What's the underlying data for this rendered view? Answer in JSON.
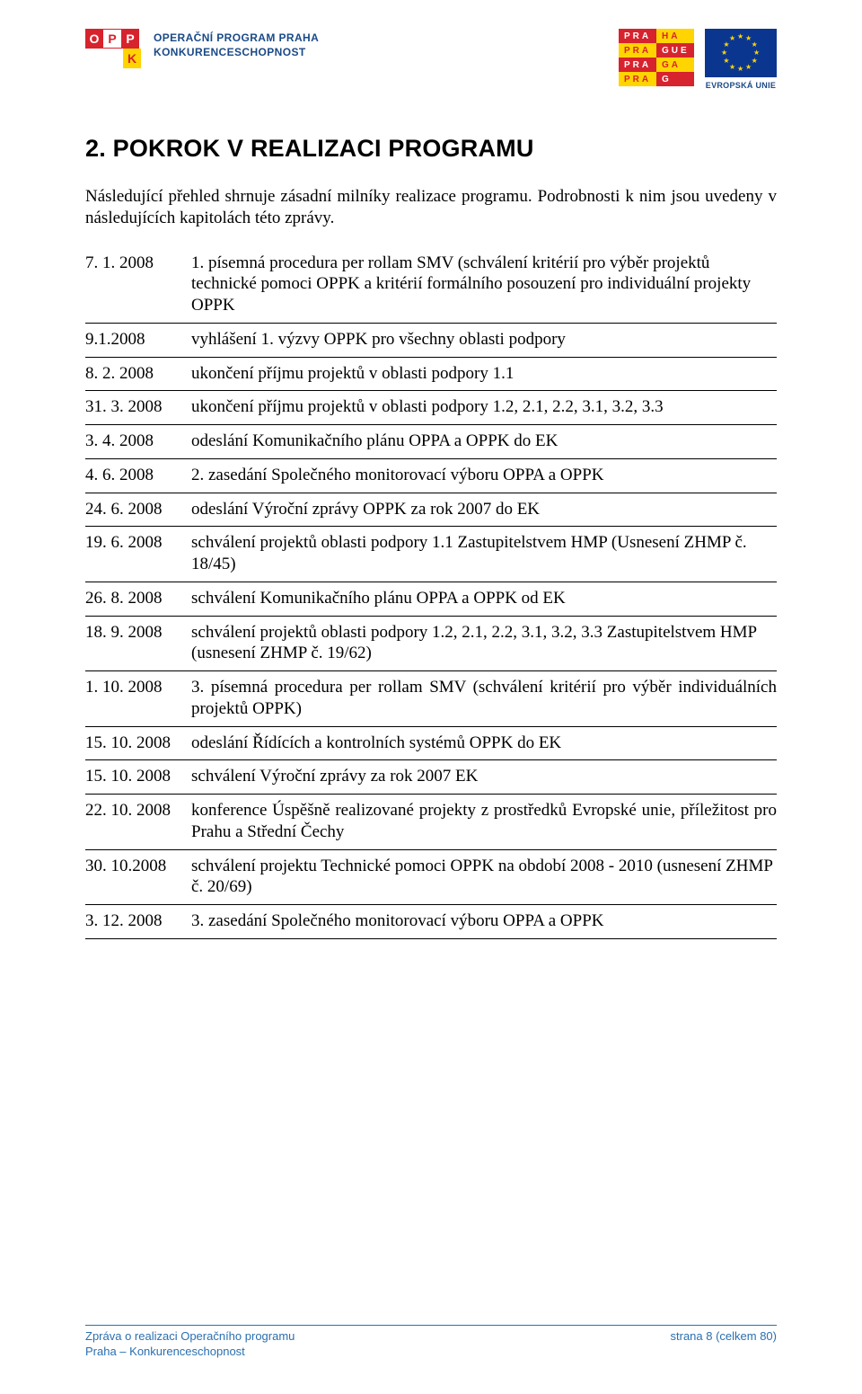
{
  "header": {
    "left": {
      "badge_letters": [
        "O",
        "P",
        "P",
        "K"
      ],
      "line1": "OPERAČNÍ PROGRAM PRAHA",
      "line2": "KONKURENCESCHOPNOST",
      "badge_bg_red": "#d7232d",
      "badge_bg_yellow": "#ffd400",
      "text_color": "#1a4a87"
    },
    "right": {
      "praha_rows": [
        "PRAHA",
        "PRAGUE",
        "PRAGA",
        "PRAG"
      ],
      "eu_label": "EVROPSKÁ UNIE",
      "eu_blue": "#0b3690",
      "eu_yellow": "#ffd400"
    }
  },
  "title": "2. POKROK V REALIZACI PROGRAMU",
  "intro": "Následující přehled shrnuje zásadní milníky realizace programu. Podrobnosti k nim jsou uvedeny v následujících kapitolách této zprávy.",
  "milestones": [
    {
      "date": "7. 1. 2008",
      "desc": "1. písemná procedura per rollam SMV (schválení kritérií pro výběr projektů technické pomoci OPPK a kritérií formálního posouzení pro individuální projekty OPPK",
      "justify": false
    },
    {
      "date": "9.1.2008",
      "desc": "vyhlášení 1. výzvy OPPK pro všechny oblasti podpory",
      "justify": false
    },
    {
      "date": "8. 2. 2008",
      "desc": "ukončení příjmu projektů v oblasti podpory 1.1",
      "justify": false
    },
    {
      "date": "31. 3. 2008",
      "desc": "ukončení příjmu projektů v oblasti podpory 1.2, 2.1, 2.2, 3.1, 3.2, 3.3",
      "justify": false
    },
    {
      "date": "3. 4. 2008",
      "desc": "odeslání Komunikačního plánu OPPA a OPPK do EK",
      "justify": false
    },
    {
      "date": "4. 6. 2008",
      "desc": "2. zasedání Společného monitorovací výboru OPPA a OPPK",
      "justify": false
    },
    {
      "date": "24. 6. 2008",
      "desc": "odeslání Výroční zprávy OPPK za rok 2007 do EK",
      "justify": false
    },
    {
      "date": "19. 6. 2008",
      "desc": "schválení projektů oblasti podpory 1.1 Zastupitelstvem HMP (Usnesení ZHMP č. 18/45)",
      "justify": false
    },
    {
      "date": "26. 8. 2008",
      "desc": "schválení Komunikačního plánu OPPA a OPPK od EK",
      "justify": false
    },
    {
      "date": "18. 9. 2008",
      "desc": "schválení projektů oblasti podpory 1.2, 2.1, 2.2, 3.1, 3.2, 3.3 Zastupitelstvem HMP (usnesení ZHMP č. 19/62)",
      "justify": false
    },
    {
      "date": "1. 10. 2008",
      "desc": "3. písemná procedura per rollam SMV (schválení kritérií pro výběr individuálních projektů OPPK)",
      "justify": true
    },
    {
      "date": "15. 10. 2008",
      "desc": "odeslání Řídících a kontrolních systémů OPPK do EK",
      "justify": false
    },
    {
      "date": "15. 10. 2008",
      "desc": "schválení Výroční zprávy za rok 2007 EK",
      "justify": false
    },
    {
      "date": "22. 10. 2008",
      "desc": "konference Úspěšně realizované projekty z prostředků Evropské unie, příležitost pro Prahu a Střední Čechy",
      "justify": true
    },
    {
      "date": "30. 10.2008",
      "desc": "schválení projektu Technické pomoci OPPK na období 2008 - 2010 (usnesení ZHMP č. 20/69)",
      "justify": false
    },
    {
      "date": "3. 12. 2008",
      "desc": "3. zasedání Společného monitorovací výboru OPPA a OPPK",
      "justify": false
    }
  ],
  "footer": {
    "left_line1": "Zpráva o realizaci Operačního programu",
    "left_line2": "Praha – Konkurenceschopnost",
    "right": "strana 8 (celkem 80)",
    "color": "#2a6fb0"
  }
}
